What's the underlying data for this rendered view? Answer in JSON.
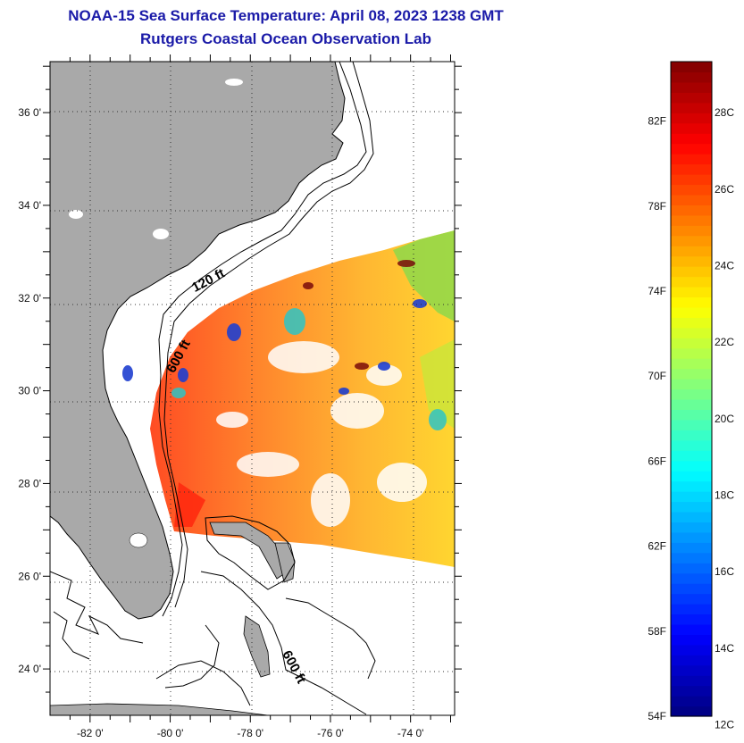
{
  "title": {
    "line1": "NOAA-15 Sea Surface Temperature:  April 08, 2023 1238 GMT",
    "line2": "Rutgers Coastal Ocean Observation Lab"
  },
  "map": {
    "lat_range": [
      23,
      37.1
    ],
    "lon_range": [
      -83,
      -72.9
    ],
    "lat_labels": [
      "24 0'",
      "26 0'",
      "28 0'",
      "30 0'",
      "32 0'",
      "34 0'",
      "36 0'"
    ],
    "lat_values": [
      24,
      26,
      28,
      30,
      32,
      34,
      36
    ],
    "lon_labels": [
      "-82 0'",
      "-80 0'",
      "-78 0'",
      "-76 0'",
      "-74 0'"
    ],
    "lon_values": [
      -82,
      -80,
      -78,
      -76,
      -74
    ],
    "contour_labels": [
      {
        "text": "120 ft",
        "lon": -79.0,
        "lat": 32.3
      },
      {
        "text": "600 ft",
        "lon": -79.7,
        "lat": 30.7
      },
      {
        "text": "600 ft",
        "lon": -77.0,
        "lat": 24.0
      }
    ],
    "colors": {
      "land": "#a9a9a9",
      "water": "#ffffff",
      "grid": "#333333"
    }
  },
  "colorbar": {
    "fahrenheit_labels": [
      "54F",
      "58F",
      "62F",
      "66F",
      "70F",
      "74F",
      "78F",
      "82F"
    ],
    "celsius_labels": [
      "12C",
      "14C",
      "16C",
      "18C",
      "20C",
      "22C",
      "24C",
      "26C",
      "28C"
    ],
    "fahrenheit_values": [
      54,
      58,
      62,
      66,
      70,
      74,
      78,
      82
    ],
    "celsius_values": [
      12,
      14,
      16,
      18,
      20,
      22,
      24,
      26,
      28
    ],
    "range_f": [
      54,
      84.8
    ]
  }
}
